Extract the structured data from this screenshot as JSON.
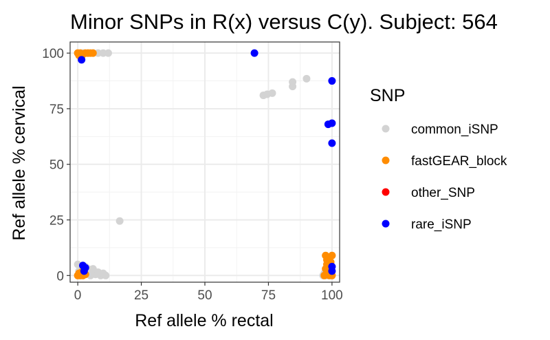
{
  "chart_data": {
    "type": "scatter",
    "title": "Minor SNPs in R(x) versus C(y). Subject: 564",
    "xlabel": "Ref allele % rectal",
    "ylabel": "Ref allele % cervical",
    "xlim": [
      -3,
      103
    ],
    "ylim": [
      -3,
      105
    ],
    "x_ticks": [
      0,
      25,
      50,
      75,
      100
    ],
    "y_ticks": [
      0,
      25,
      50,
      75,
      100
    ],
    "grid": true,
    "legend": {
      "title": "SNP",
      "placement": "right"
    },
    "series": [
      {
        "name": "common_iSNP",
        "color": "#d3d3d3",
        "points": [
          [
            0,
            100
          ],
          [
            1,
            99.5
          ],
          [
            2,
            100
          ],
          [
            4,
            100
          ],
          [
            6,
            100
          ],
          [
            8,
            100
          ],
          [
            10,
            100
          ],
          [
            12,
            100
          ],
          [
            16.5,
            24.5
          ],
          [
            73,
            81
          ],
          [
            74.5,
            81.5
          ],
          [
            76.5,
            82
          ],
          [
            84.5,
            85
          ],
          [
            84.5,
            87
          ],
          [
            90,
            88.5
          ],
          [
            0,
            5
          ],
          [
            0.5,
            2
          ],
          [
            1,
            0
          ],
          [
            2,
            1
          ],
          [
            3,
            0.5
          ],
          [
            4,
            3
          ],
          [
            5,
            0
          ],
          [
            6,
            1
          ],
          [
            7,
            0.5
          ],
          [
            8,
            1.5
          ],
          [
            9,
            0
          ],
          [
            10,
            1
          ],
          [
            11,
            0
          ],
          [
            6,
            3
          ],
          [
            3,
            4
          ],
          [
            96.5,
            0
          ],
          [
            97,
            1
          ],
          [
            98,
            0
          ]
        ]
      },
      {
        "name": "fastGEAR_block",
        "color": "#ff8c00",
        "points": [
          [
            0,
            100
          ],
          [
            0.5,
            99
          ],
          [
            1,
            100
          ],
          [
            1.5,
            98.5
          ],
          [
            2,
            99.5
          ],
          [
            3,
            100
          ],
          [
            4,
            100
          ],
          [
            5,
            100
          ],
          [
            6,
            100
          ],
          [
            0,
            0
          ],
          [
            0.5,
            1
          ],
          [
            1,
            0
          ],
          [
            1.5,
            1.5
          ],
          [
            2,
            0
          ],
          [
            3,
            0.5
          ],
          [
            97,
            0
          ],
          [
            98,
            1
          ],
          [
            98.5,
            2
          ],
          [
            99,
            0
          ],
          [
            99.5,
            1
          ],
          [
            100,
            0
          ],
          [
            97.5,
            3
          ],
          [
            98,
            5
          ],
          [
            98.5,
            6
          ],
          [
            99,
            8
          ],
          [
            97.5,
            9
          ],
          [
            100,
            9
          ],
          [
            98,
            7
          ],
          [
            99.5,
            6
          ]
        ]
      },
      {
        "name": "other_SNP",
        "color": "#ff0000",
        "points": []
      },
      {
        "name": "rare_iSNP",
        "color": "#0000ff",
        "points": [
          [
            1.5,
            97
          ],
          [
            69.5,
            100
          ],
          [
            100,
            87.5
          ],
          [
            98.5,
            68
          ],
          [
            100,
            68.5
          ],
          [
            100,
            59.5
          ],
          [
            2,
            4.5
          ],
          [
            3,
            3.5
          ],
          [
            2.5,
            2
          ],
          [
            100,
            4
          ],
          [
            100,
            2
          ]
        ]
      }
    ]
  }
}
